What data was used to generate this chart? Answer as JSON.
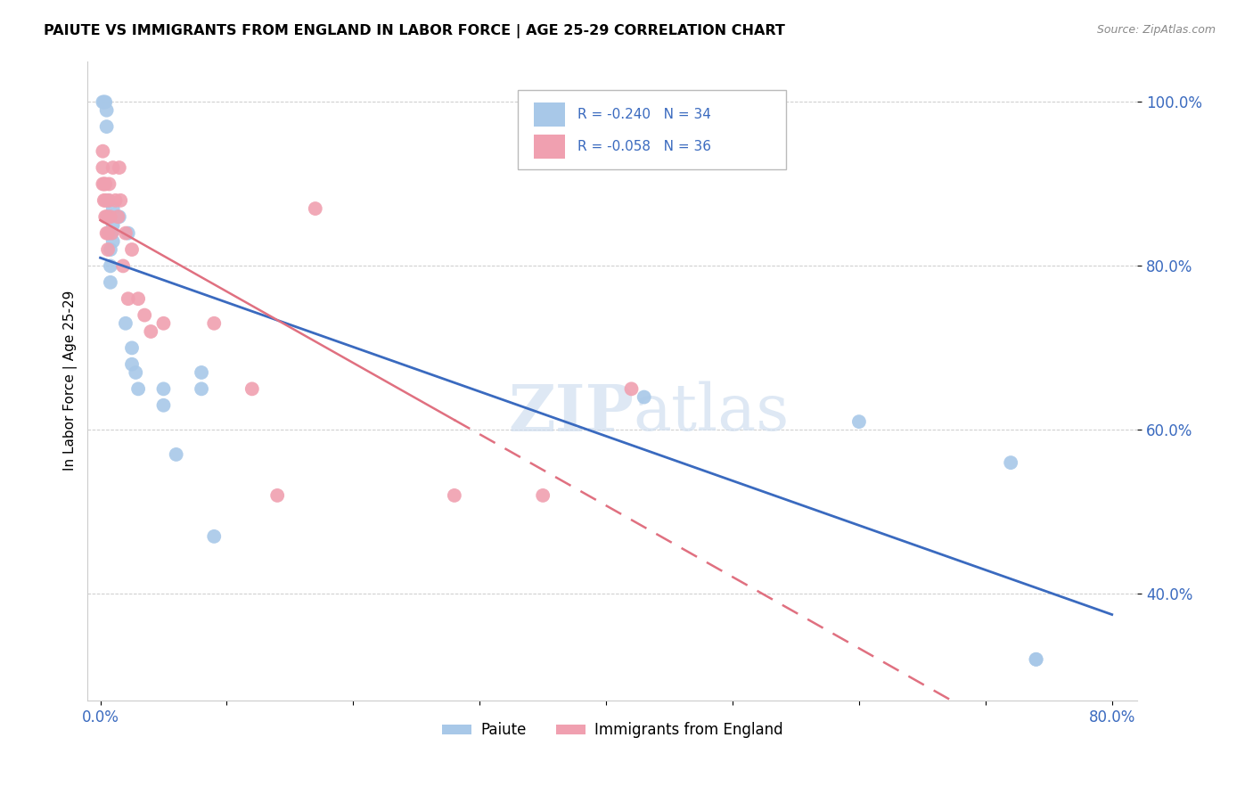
{
  "title": "PAIUTE VS IMMIGRANTS FROM ENGLAND IN LABOR FORCE | AGE 25-29 CORRELATION CHART",
  "source": "Source: ZipAtlas.com",
  "ylabel": "In Labor Force | Age 25-29",
  "legend_labels": [
    "Paiute",
    "Immigrants from England"
  ],
  "r_values": [
    -0.24,
    -0.058
  ],
  "n_values": [
    34,
    36
  ],
  "xlim": [
    -0.01,
    0.82
  ],
  "ylim": [
    0.27,
    1.05
  ],
  "blue_color": "#a8c8e8",
  "pink_color": "#f0a0b0",
  "blue_line_color": "#3a6abf",
  "pink_line_color": "#e07080",
  "watermark_zip": "ZIP",
  "watermark_atlas": "atlas",
  "blue_scatter_x": [
    0.002,
    0.003,
    0.004,
    0.005,
    0.005,
    0.006,
    0.006,
    0.007,
    0.007,
    0.008,
    0.008,
    0.008,
    0.009,
    0.01,
    0.01,
    0.01,
    0.015,
    0.02,
    0.022,
    0.025,
    0.025,
    0.028,
    0.03,
    0.05,
    0.05,
    0.06,
    0.08,
    0.08,
    0.09,
    0.43,
    0.6,
    0.72,
    0.74,
    0.74
  ],
  "blue_scatter_y": [
    1.0,
    1.0,
    1.0,
    0.97,
    0.99,
    0.86,
    0.88,
    0.84,
    0.86,
    0.78,
    0.8,
    0.82,
    0.84,
    0.83,
    0.85,
    0.87,
    0.86,
    0.73,
    0.84,
    0.68,
    0.7,
    0.67,
    0.65,
    0.63,
    0.65,
    0.57,
    0.65,
    0.67,
    0.47,
    0.64,
    0.61,
    0.56,
    0.32,
    0.32
  ],
  "pink_scatter_x": [
    0.002,
    0.002,
    0.002,
    0.003,
    0.003,
    0.004,
    0.004,
    0.004,
    0.005,
    0.005,
    0.006,
    0.006,
    0.007,
    0.007,
    0.008,
    0.009,
    0.01,
    0.012,
    0.014,
    0.015,
    0.016,
    0.018,
    0.02,
    0.022,
    0.025,
    0.03,
    0.035,
    0.04,
    0.05,
    0.09,
    0.12,
    0.14,
    0.17,
    0.28,
    0.35,
    0.42
  ],
  "pink_scatter_y": [
    0.9,
    0.92,
    0.94,
    0.88,
    0.9,
    0.86,
    0.88,
    0.9,
    0.84,
    0.86,
    0.82,
    0.84,
    0.88,
    0.9,
    0.86,
    0.84,
    0.92,
    0.88,
    0.86,
    0.92,
    0.88,
    0.8,
    0.84,
    0.76,
    0.82,
    0.76,
    0.74,
    0.72,
    0.73,
    0.73,
    0.65,
    0.52,
    0.87,
    0.52,
    0.52,
    0.65
  ]
}
